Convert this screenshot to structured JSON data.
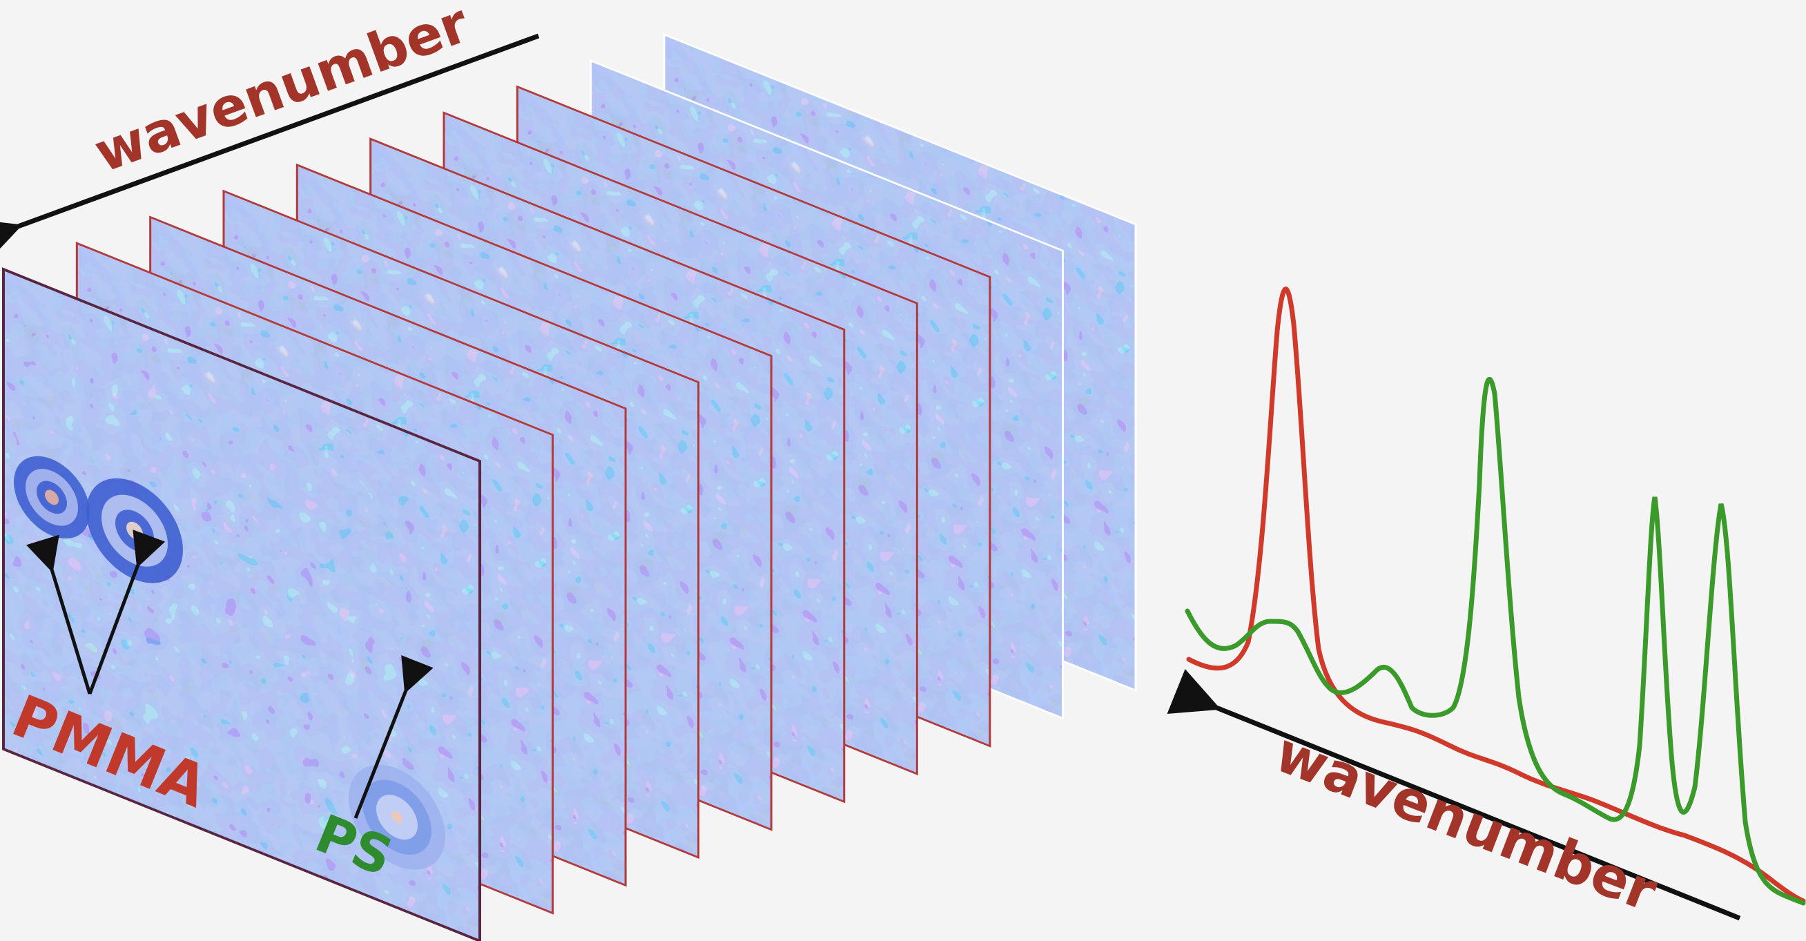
{
  "labels": {
    "top_axis": "wavenumber",
    "bottom_axis": "wavenumber",
    "pmma": "PMMA",
    "ps": "PS"
  },
  "colors": {
    "background": "#f4f4f4",
    "frame_base": "#7d9be8",
    "frame_dark": "#3f5fd0",
    "frame_light": "#b9c9f4",
    "frame_border_red": "#b23a3a",
    "pmma_red": "#c0392b",
    "ps_green": "#2e8b2e",
    "spectrum_red": "#d03a2a",
    "spectrum_green": "#3a9a2a",
    "arrow": "#111111"
  },
  "frame_count": 10,
  "icons": [
    "arrow-left-icon"
  ]
}
